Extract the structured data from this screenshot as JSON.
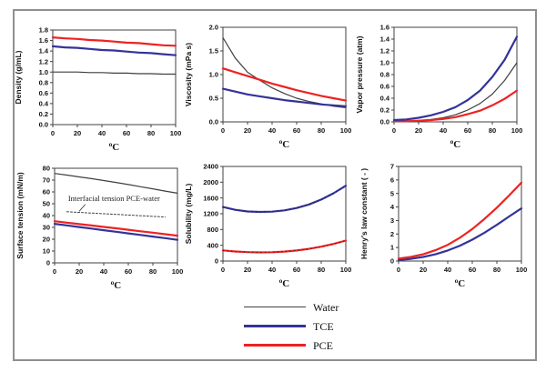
{
  "figure": {
    "border_color": "#8f8f8f",
    "background": "#ffffff"
  },
  "colors": {
    "water": "#3f3f3f",
    "tce": "#333399",
    "pce": "#ee2222",
    "axis": "#404040"
  },
  "legend": {
    "items": [
      {
        "label": "Water",
        "color": "#3f3f3f",
        "thickness": 1.5
      },
      {
        "label": "TCE",
        "color": "#333399",
        "thickness": 2.5
      },
      {
        "label": "PCE",
        "color": "#ee2222",
        "thickness": 2.5
      }
    ]
  },
  "chart_data": [
    {
      "name": "density",
      "type": "line",
      "title": "",
      "xlabel": "oC",
      "ylabel": "Density (g/mL)",
      "xlim": [
        0,
        100
      ],
      "xstep": 20,
      "ylim": [
        0,
        1.8
      ],
      "ystep": 0.2,
      "ydecimals": 1,
      "x": [
        0,
        10,
        20,
        30,
        40,
        50,
        60,
        70,
        80,
        90,
        100
      ],
      "series": [
        {
          "name": "Water",
          "color": "#3f3f3f",
          "width": 1.2,
          "values": [
            1.0,
            1.0,
            1.0,
            0.99,
            0.99,
            0.98,
            0.98,
            0.97,
            0.97,
            0.96,
            0.96
          ]
        },
        {
          "name": "TCE",
          "color": "#333399",
          "width": 2.2,
          "values": [
            1.49,
            1.47,
            1.46,
            1.44,
            1.42,
            1.41,
            1.39,
            1.37,
            1.36,
            1.34,
            1.32
          ]
        },
        {
          "name": "PCE",
          "color": "#ee2222",
          "width": 2.2,
          "values": [
            1.66,
            1.64,
            1.63,
            1.61,
            1.6,
            1.58,
            1.56,
            1.55,
            1.53,
            1.51,
            1.5
          ]
        }
      ]
    },
    {
      "name": "viscosity",
      "type": "line",
      "title": "",
      "xlabel": "oC",
      "ylabel": "Viscosity (mPa s)",
      "xlim": [
        0,
        100
      ],
      "xstep": 20,
      "ylim": [
        0,
        2.0
      ],
      "ystep": 0.5,
      "ydecimals": 1,
      "x": [
        0,
        10,
        20,
        30,
        40,
        50,
        60,
        70,
        80,
        90,
        100
      ],
      "series": [
        {
          "name": "Water",
          "color": "#3f3f3f",
          "width": 1.2,
          "values": [
            1.78,
            1.35,
            1.05,
            0.88,
            0.72,
            0.6,
            0.5,
            0.43,
            0.38,
            0.33,
            0.3
          ]
        },
        {
          "name": "TCE",
          "color": "#333399",
          "width": 2.2,
          "values": [
            0.7,
            0.64,
            0.58,
            0.54,
            0.5,
            0.46,
            0.43,
            0.4,
            0.37,
            0.35,
            0.33
          ]
        },
        {
          "name": "PCE",
          "color": "#ee2222",
          "width": 2.2,
          "values": [
            1.13,
            1.05,
            0.97,
            0.89,
            0.81,
            0.74,
            0.67,
            0.61,
            0.55,
            0.5,
            0.45
          ]
        }
      ]
    },
    {
      "name": "vapor-pressure",
      "type": "line",
      "title": "",
      "xlabel": "oC",
      "ylabel": "Vapor pressure (atm)",
      "xlim": [
        0,
        100
      ],
      "xstep": 20,
      "ylim": [
        0,
        1.6
      ],
      "ystep": 0.2,
      "ydecimals": 1,
      "x": [
        0,
        10,
        20,
        30,
        40,
        50,
        60,
        70,
        80,
        90,
        100
      ],
      "series": [
        {
          "name": "Water",
          "color": "#3f3f3f",
          "width": 1.2,
          "values": [
            0.01,
            0.01,
            0.02,
            0.04,
            0.07,
            0.12,
            0.2,
            0.31,
            0.47,
            0.7,
            1.0
          ]
        },
        {
          "name": "PCE",
          "color": "#ee2222",
          "width": 2.2,
          "values": [
            0.01,
            0.01,
            0.02,
            0.03,
            0.05,
            0.08,
            0.13,
            0.19,
            0.28,
            0.39,
            0.53
          ]
        },
        {
          "name": "TCE",
          "color": "#333399",
          "width": 2.2,
          "values": [
            0.03,
            0.04,
            0.07,
            0.11,
            0.17,
            0.25,
            0.37,
            0.53,
            0.76,
            1.05,
            1.44
          ]
        }
      ]
    },
    {
      "name": "surface-tension",
      "type": "line",
      "title": "",
      "xlabel": "oC",
      "ylabel": "Surface tension (mN/m)",
      "xlim": [
        0,
        100
      ],
      "xstep": 20,
      "ylim": [
        0,
        80
      ],
      "ystep": 10,
      "ydecimals": 0,
      "x": [
        0,
        10,
        20,
        30,
        40,
        50,
        60,
        70,
        80,
        90,
        100
      ],
      "annotation": {
        "text": "Interfacial tension PCE-water",
        "x": 11,
        "y": 52.5,
        "leader": [
          [
            25,
            49.5
          ],
          [
            20,
            43.6
          ]
        ]
      },
      "series": [
        {
          "name": "Water",
          "color": "#3f3f3f",
          "width": 1.2,
          "values": [
            75.6,
            74.2,
            72.7,
            71.2,
            69.6,
            68.0,
            66.2,
            64.4,
            62.6,
            60.7,
            58.9
          ]
        },
        {
          "name": "Interfacial tension PCE-water",
          "color": "#3f3f3f",
          "width": 1,
          "dash": "2,2",
          "x": [
            10,
            90
          ],
          "values": [
            43.2,
            38.8
          ]
        },
        {
          "name": "TCE",
          "color": "#333399",
          "width": 2.2,
          "values": [
            33.0,
            31.7,
            30.3,
            29.0,
            27.6,
            26.3,
            24.9,
            23.6,
            22.2,
            20.9,
            19.5
          ]
        },
        {
          "name": "PCE",
          "color": "#ee2222",
          "width": 2.2,
          "values": [
            35.2,
            34.0,
            32.8,
            31.6,
            30.4,
            29.2,
            28.0,
            26.7,
            25.5,
            24.2,
            23.0
          ]
        }
      ]
    },
    {
      "name": "solubility",
      "type": "line",
      "title": "",
      "xlabel": "oC",
      "ylabel": "Solubility (mg/L)",
      "xlim": [
        0,
        100
      ],
      "xstep": 20,
      "ylim": [
        0,
        2400
      ],
      "ystep": 400,
      "ydecimals": 0,
      "x": [
        0,
        10,
        20,
        30,
        40,
        50,
        60,
        70,
        80,
        90,
        100
      ],
      "series": [
        {
          "name": "TCE",
          "color": "#333399",
          "width": 2.2,
          "dots": true,
          "values": [
            1370,
            1300,
            1258,
            1245,
            1252,
            1285,
            1345,
            1435,
            1560,
            1720,
            1910
          ]
        },
        {
          "name": "PCE",
          "color": "#ee2222",
          "width": 2.2,
          "dots": true,
          "values": [
            270,
            242,
            226,
            220,
            224,
            240,
            268,
            310,
            365,
            435,
            520
          ]
        }
      ]
    },
    {
      "name": "henrys-law",
      "type": "line",
      "title": "",
      "xlabel": "oC",
      "ylabel": "Henry's law constant ( - )",
      "xlim": [
        0,
        100
      ],
      "xstep": 20,
      "ylim": [
        0,
        7
      ],
      "ystep": 1,
      "ydecimals": 0,
      "x": [
        0,
        10,
        20,
        30,
        40,
        50,
        60,
        70,
        80,
        90,
        100
      ],
      "series": [
        {
          "name": "TCE",
          "color": "#333399",
          "width": 2.2,
          "values": [
            0.08,
            0.16,
            0.3,
            0.5,
            0.78,
            1.14,
            1.58,
            2.1,
            2.68,
            3.3,
            3.9
          ]
        },
        {
          "name": "PCE",
          "color": "#ee2222",
          "width": 2.2,
          "values": [
            0.18,
            0.3,
            0.5,
            0.8,
            1.2,
            1.73,
            2.37,
            3.12,
            3.95,
            4.85,
            5.8
          ]
        }
      ]
    }
  ]
}
